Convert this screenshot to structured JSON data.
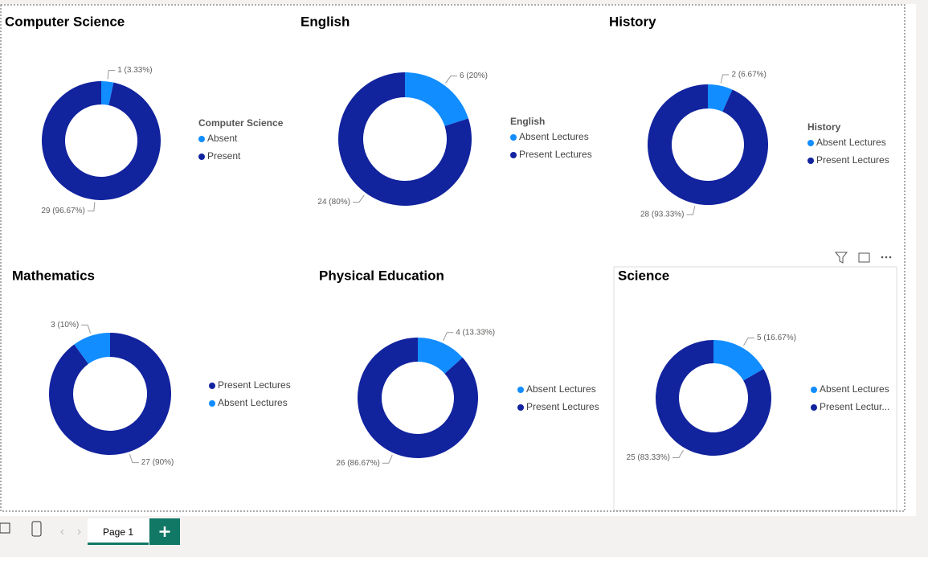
{
  "chart_data": [
    {
      "type": "pie",
      "donut": true,
      "title": "Computer Science",
      "legend_title": "Computer Science",
      "categories": [
        "Absent",
        "Present"
      ],
      "values": [
        1,
        29
      ],
      "value_labels": [
        "1 (3.33%)",
        "29 (96.67%)"
      ],
      "colors": [
        "#118DFF",
        "#12239E"
      ]
    },
    {
      "type": "pie",
      "donut": true,
      "title": "English",
      "legend_title": "English",
      "categories": [
        "Absent Lectures",
        "Present Lectures"
      ],
      "values": [
        6,
        24
      ],
      "value_labels": [
        "6 (20%)",
        "24 (80%)"
      ],
      "colors": [
        "#118DFF",
        "#12239E"
      ]
    },
    {
      "type": "pie",
      "donut": true,
      "title": "History",
      "legend_title": "History",
      "categories": [
        "Absent Lectures",
        "Present Lectures"
      ],
      "values": [
        2,
        28
      ],
      "value_labels": [
        "2 (6.67%)",
        "28 (93.33%)"
      ],
      "colors": [
        "#118DFF",
        "#12239E"
      ]
    },
    {
      "type": "pie",
      "donut": true,
      "title": "Mathematics",
      "categories": [
        "Present Lectures",
        "Absent Lectures"
      ],
      "values": [
        27,
        3
      ],
      "value_labels": [
        "27 (90%)",
        "3 (10%)"
      ],
      "colors": [
        "#12239E",
        "#118DFF"
      ]
    },
    {
      "type": "pie",
      "donut": true,
      "title": "Physical Education",
      "categories": [
        "Absent Lectures",
        "Present Lectures"
      ],
      "values": [
        4,
        26
      ],
      "value_labels": [
        "4 (13.33%)",
        "26 (86.67%)"
      ],
      "colors": [
        "#118DFF",
        "#12239E"
      ]
    },
    {
      "type": "pie",
      "donut": true,
      "title": "Science",
      "categories": [
        "Absent Lectures",
        "Present Lectur..."
      ],
      "values": [
        5,
        25
      ],
      "value_labels": [
        "5 (16.67%)",
        "25 (83.33%)"
      ],
      "colors": [
        "#118DFF",
        "#12239E"
      ]
    }
  ],
  "tabs": [
    "Page 1"
  ]
}
